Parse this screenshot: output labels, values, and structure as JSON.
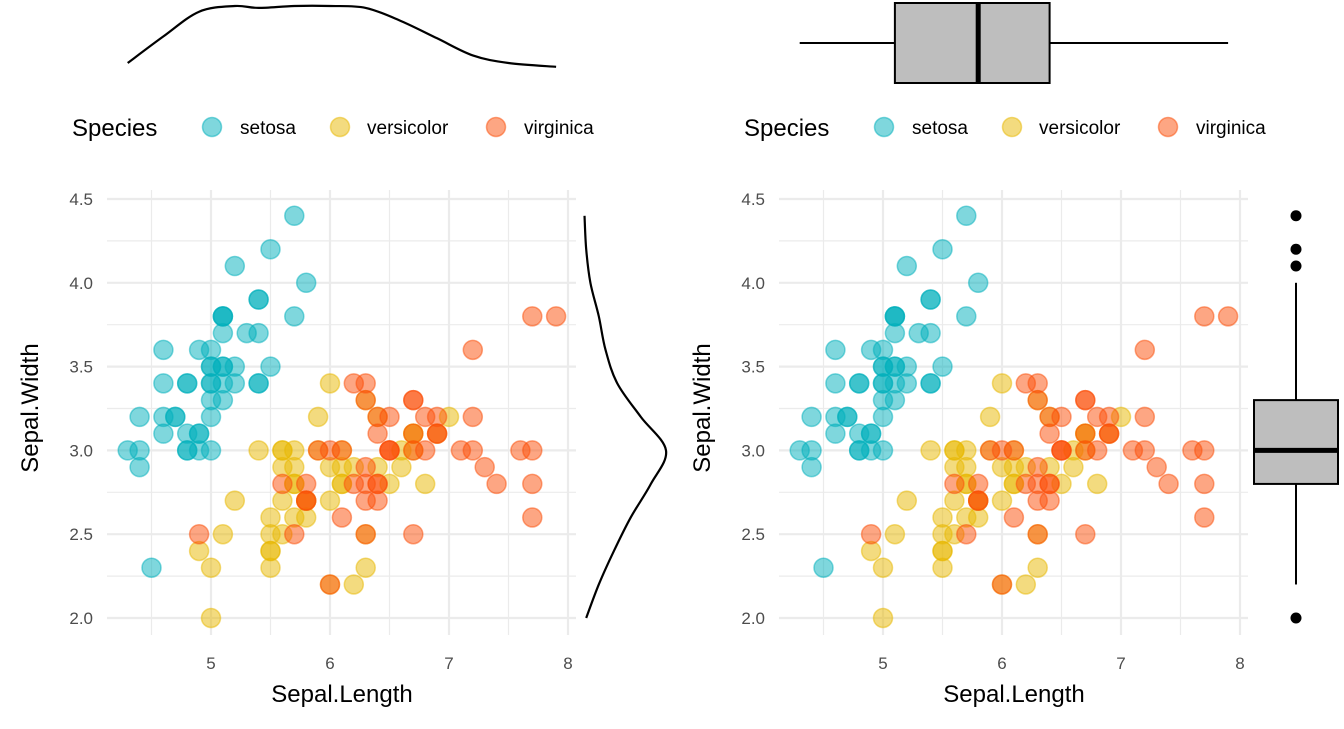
{
  "chart_data": [
    {
      "type": "scatter",
      "panel": "left",
      "title": "",
      "xlabel": "Sepal.Length",
      "ylabel": "Sepal.Width",
      "xlim": [
        4.2,
        8.1
      ],
      "ylim": [
        1.9,
        4.55
      ],
      "x_ticks": [
        5,
        6,
        7,
        8
      ],
      "x_tick_labels": [
        "5",
        "6",
        "7",
        "8"
      ],
      "y_ticks": [
        2.0,
        2.5,
        3.0,
        3.5,
        4.0,
        4.5
      ],
      "y_tick_labels": [
        "2.0",
        "2.5",
        "3.0",
        "3.5",
        "4.0",
        "4.5"
      ],
      "grid": true,
      "legend": {
        "title": "Species",
        "position": "top",
        "entries": [
          "setosa",
          "versicolor",
          "virginica"
        ]
      },
      "marginal_top": "density",
      "marginal_right": "density"
    },
    {
      "type": "scatter",
      "panel": "right",
      "title": "",
      "xlabel": "Sepal.Length",
      "ylabel": "Sepal.Width",
      "xlim": [
        4.2,
        8.1
      ],
      "ylim": [
        1.9,
        4.55
      ],
      "x_ticks": [
        5,
        6,
        7,
        8
      ],
      "x_tick_labels": [
        "5",
        "6",
        "7",
        "8"
      ],
      "y_ticks": [
        2.0,
        2.5,
        3.0,
        3.5,
        4.0,
        4.5
      ],
      "y_tick_labels": [
        "2.0",
        "2.5",
        "3.0",
        "3.5",
        "4.0",
        "4.5"
      ],
      "grid": true,
      "legend": {
        "title": "Species",
        "position": "top",
        "entries": [
          "setosa",
          "versicolor",
          "virginica"
        ]
      },
      "marginal_top": "boxplot",
      "marginal_right": "boxplot",
      "boxplot_x": {
        "min": 4.3,
        "q1": 5.1,
        "median": 5.8,
        "q3": 6.4,
        "max": 7.9,
        "outliers": []
      },
      "boxplot_y": {
        "min": 2.2,
        "q1": 2.8,
        "median": 3.0,
        "q3": 3.3,
        "max": 4.0,
        "outliers": [
          4.4,
          4.2,
          4.1,
          2.0
        ]
      }
    }
  ],
  "species": [
    {
      "name": "setosa",
      "color": "#00AFBB"
    },
    {
      "name": "versicolor",
      "color": "#E7B800"
    },
    {
      "name": "virginica",
      "color": "#FC4E07"
    }
  ],
  "series": {
    "setosa": {
      "x": [
        5.1,
        4.9,
        4.7,
        4.6,
        5.0,
        5.4,
        4.6,
        5.0,
        4.4,
        4.9,
        5.4,
        4.8,
        4.8,
        4.3,
        5.8,
        5.7,
        5.4,
        5.1,
        5.7,
        5.1,
        5.4,
        5.1,
        4.6,
        5.1,
        4.8,
        5.0,
        5.0,
        5.2,
        5.2,
        4.7,
        4.8,
        5.4,
        5.2,
        5.5,
        4.9,
        5.0,
        5.5,
        4.9,
        4.4,
        5.1,
        5.0,
        4.5,
        4.4,
        5.0,
        5.1,
        4.8,
        5.1,
        4.6,
        5.3,
        5.0
      ],
      "y": [
        3.5,
        3.0,
        3.2,
        3.1,
        3.6,
        3.9,
        3.4,
        3.4,
        2.9,
        3.1,
        3.7,
        3.4,
        3.0,
        3.0,
        4.0,
        4.4,
        3.9,
        3.5,
        3.8,
        3.8,
        3.4,
        3.7,
        3.6,
        3.3,
        3.4,
        3.0,
        3.4,
        3.5,
        3.4,
        3.2,
        3.1,
        3.4,
        4.1,
        4.2,
        3.1,
        3.2,
        3.5,
        3.6,
        3.0,
        3.4,
        3.5,
        2.3,
        3.2,
        3.5,
        3.8,
        3.0,
        3.8,
        3.2,
        3.7,
        3.3
      ]
    },
    "versicolor": {
      "x": [
        7.0,
        6.4,
        6.9,
        5.5,
        6.5,
        5.7,
        6.3,
        4.9,
        6.6,
        5.2,
        5.0,
        5.9,
        6.0,
        6.1,
        5.6,
        6.7,
        5.6,
        5.8,
        6.2,
        5.6,
        5.9,
        6.1,
        6.3,
        6.1,
        6.4,
        6.6,
        6.8,
        6.7,
        6.0,
        5.7,
        5.5,
        5.5,
        5.8,
        6.0,
        5.4,
        6.0,
        6.7,
        6.3,
        5.6,
        5.5,
        5.5,
        6.1,
        5.8,
        5.0,
        5.6,
        5.7,
        5.7,
        6.2,
        5.1,
        5.7
      ],
      "y": [
        3.2,
        3.2,
        3.1,
        2.3,
        2.8,
        2.8,
        3.3,
        2.4,
        2.9,
        2.7,
        2.0,
        3.0,
        2.2,
        2.9,
        2.9,
        3.1,
        3.0,
        2.7,
        2.2,
        2.5,
        3.2,
        2.8,
        2.5,
        2.8,
        2.9,
        3.0,
        2.8,
        3.0,
        2.9,
        2.6,
        2.4,
        2.4,
        2.7,
        2.7,
        3.0,
        3.4,
        3.1,
        2.3,
        3.0,
        2.5,
        2.6,
        3.0,
        2.6,
        2.3,
        2.7,
        3.0,
        2.9,
        2.9,
        2.5,
        2.8
      ]
    },
    "virginica": {
      "x": [
        6.3,
        5.8,
        7.1,
        6.3,
        6.5,
        7.6,
        4.9,
        7.3,
        6.7,
        7.2,
        6.5,
        6.4,
        6.8,
        5.7,
        5.8,
        6.4,
        6.5,
        7.7,
        7.7,
        6.0,
        6.9,
        5.6,
        7.7,
        6.3,
        6.7,
        7.2,
        6.2,
        6.1,
        6.4,
        7.2,
        7.4,
        7.9,
        6.4,
        6.3,
        6.1,
        7.7,
        6.3,
        6.4,
        6.0,
        6.9,
        6.7,
        6.9,
        5.8,
        6.8,
        6.7,
        6.7,
        6.3,
        6.5,
        6.2,
        5.9
      ],
      "y": [
        3.3,
        2.7,
        3.0,
        2.9,
        3.0,
        3.0,
        2.5,
        2.9,
        2.5,
        3.6,
        3.2,
        2.7,
        3.0,
        2.5,
        2.8,
        3.2,
        3.0,
        3.8,
        2.6,
        2.2,
        3.2,
        2.8,
        2.8,
        2.7,
        3.3,
        3.2,
        2.8,
        3.0,
        2.8,
        3.0,
        2.8,
        3.8,
        2.8,
        2.8,
        2.6,
        3.0,
        3.4,
        3.1,
        3.0,
        3.1,
        3.1,
        3.1,
        2.7,
        3.2,
        3.3,
        3.0,
        2.5,
        3.0,
        3.4,
        3.0
      ]
    }
  },
  "density_x": {
    "x": [
      4.3,
      4.6,
      4.9,
      5.2,
      5.4,
      5.7,
      6.0,
      6.3,
      6.6,
      6.9,
      7.2,
      7.5,
      7.9
    ],
    "d": [
      0.1,
      0.24,
      0.37,
      0.4,
      0.39,
      0.4,
      0.4,
      0.39,
      0.32,
      0.23,
      0.14,
      0.1,
      0.08
    ]
  },
  "density_y": {
    "y": [
      2.0,
      2.2,
      2.4,
      2.6,
      2.8,
      3.0,
      3.2,
      3.4,
      3.6,
      3.8,
      4.0,
      4.2,
      4.4
    ],
    "d": [
      0.05,
      0.2,
      0.38,
      0.58,
      0.82,
      1.0,
      0.7,
      0.42,
      0.28,
      0.2,
      0.1,
      0.05,
      0.03
    ]
  },
  "colors": {
    "grid": "#ebebeb",
    "box_fill": "#bebebe",
    "tick_text": "#4d4d4d"
  }
}
